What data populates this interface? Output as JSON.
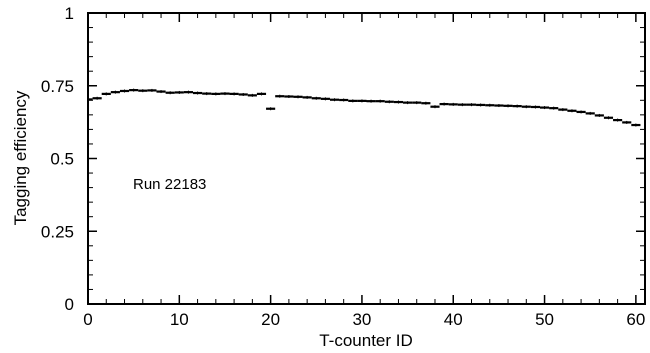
{
  "chart_data": {
    "type": "scatter",
    "xlabel": "T-counter ID",
    "ylabel": "Tagging efficiency",
    "xlim": [
      0,
      61
    ],
    "ylim": [
      0,
      1
    ],
    "x_ticks": [
      0,
      10,
      20,
      30,
      40,
      50,
      60
    ],
    "y_ticks": [
      0,
      0.25,
      0.5,
      0.75,
      1
    ],
    "y_tick_labels": [
      "0",
      "0.25",
      "0.5",
      "0.75",
      "1"
    ],
    "grid": false,
    "annotation": "Run 22183",
    "series": [
      {
        "x": [
          0,
          1,
          2,
          3,
          4,
          5,
          6,
          7,
          8,
          9,
          10,
          11,
          12,
          13,
          14,
          15,
          16,
          17,
          18,
          19,
          20,
          21,
          22,
          23,
          24,
          25,
          26,
          27,
          28,
          29,
          30,
          31,
          32,
          33,
          34,
          35,
          36,
          37,
          38,
          39,
          40,
          41,
          42,
          43,
          44,
          45,
          46,
          47,
          48,
          49,
          50,
          51,
          52,
          53,
          54,
          55,
          56,
          57,
          58,
          59,
          60
        ],
        "y": [
          0.703,
          0.707,
          0.722,
          0.728,
          0.732,
          0.735,
          0.733,
          0.734,
          0.73,
          0.726,
          0.727,
          0.728,
          0.725,
          0.723,
          0.722,
          0.723,
          0.722,
          0.72,
          0.717,
          0.722,
          0.671,
          0.714,
          0.713,
          0.712,
          0.71,
          0.707,
          0.705,
          0.702,
          0.701,
          0.698,
          0.698,
          0.697,
          0.697,
          0.695,
          0.694,
          0.692,
          0.692,
          0.69,
          0.678,
          0.687,
          0.686,
          0.685,
          0.685,
          0.684,
          0.683,
          0.682,
          0.681,
          0.68,
          0.678,
          0.677,
          0.675,
          0.673,
          0.668,
          0.664,
          0.66,
          0.655,
          0.648,
          0.64,
          0.632,
          0.624,
          0.615
        ]
      }
    ]
  }
}
